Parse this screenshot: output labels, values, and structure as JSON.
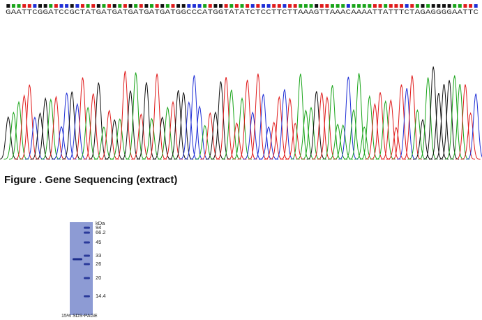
{
  "sequence": "GAATTCGGATCCGCTATGATGATGATGATGATGGCCCATGGTATATCTCCTTCTTAAAGTTAAACAAAATTATTTCTAGAGGGGAATTC",
  "caption": "Figure . Gene Sequencing (extract)",
  "gel": {
    "unit": "kDa",
    "markers": [
      "94",
      "66.2",
      "45",
      "33",
      "26",
      "20",
      "14.4"
    ],
    "label": "15% SDS-PAGE"
  }
}
